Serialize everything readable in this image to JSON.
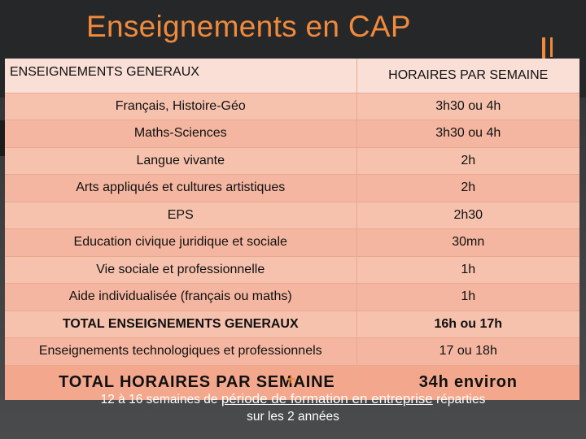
{
  "slide": {
    "title": "Enseignements en CAP"
  },
  "table": {
    "headers": [
      "ENSEIGNEMENTS GENERAUX",
      "HORAIRES PAR SEMAINE"
    ],
    "rows": [
      {
        "subject": "Français, Histoire-Géo",
        "hours": "3h30 ou 4h"
      },
      {
        "subject": "Maths-Sciences",
        "hours": "3h30 ou 4h"
      },
      {
        "subject": "Langue vivante",
        "hours": "2h"
      },
      {
        "subject": "Arts appliqués et cultures artistiques",
        "hours": "2h"
      },
      {
        "subject": "EPS",
        "hours": "2h30"
      },
      {
        "subject": "Education civique juridique et sociale",
        "hours": "30mn"
      },
      {
        "subject": "Vie sociale et professionnelle",
        "hours": "1h"
      },
      {
        "subject": "Aide individualisée (français ou maths)",
        "hours": "1h"
      },
      {
        "subject": "TOTAL ENSEIGNEMENTS GENERAUX",
        "hours": "16h ou 17h"
      },
      {
        "subject": "Enseignements technologiques et professionnels",
        "hours": "17 ou 18h"
      }
    ],
    "grand_total": {
      "label": "TOTAL HORAIRES PAR SEMAINE",
      "hours": "34h environ"
    }
  },
  "footnote": {
    "plus": "+",
    "prefix": "12 à 16 semaines de ",
    "emphasis": "période de formation en entreprise",
    "suffix": " réparties",
    "line2": "sur les 2 années"
  },
  "colors": {
    "accent": "#f08a3c",
    "header_row": "#f9dfd6",
    "row_light": "#f6c2ae",
    "row_dark": "#f4b6a0"
  }
}
